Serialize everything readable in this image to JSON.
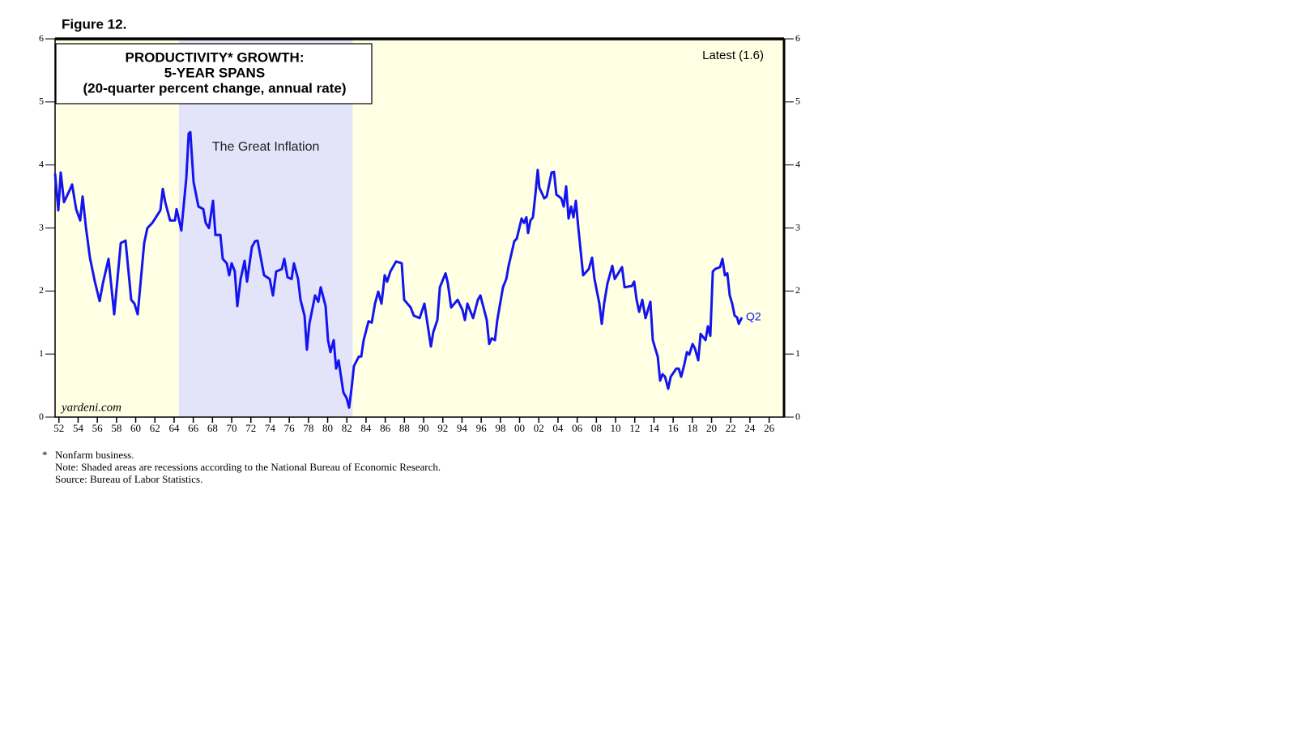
{
  "figure_label": "Figure 12.",
  "chart_data": {
    "type": "line",
    "title": [
      "PRODUCTIVITY* GROWTH:",
      "5-YEAR SPANS",
      "(20-quarter percent change, annual rate)"
    ],
    "annotations": {
      "latest": "Latest (1.6)",
      "last_point": "Q2",
      "shade_label": "The Great Inflation",
      "source_mark": "yardeni.com"
    },
    "shaded_span": [
      1964.5,
      1982.6
    ],
    "color": "#1414f0",
    "xlim": [
      1951.6,
      2027.55
    ],
    "ylim": [
      0,
      6
    ],
    "yticks": [
      0,
      1,
      2,
      3,
      4,
      5,
      6
    ],
    "xticks": [
      {
        "value": 1952,
        "label": "52"
      },
      {
        "value": 1954,
        "label": "54"
      },
      {
        "value": 1956,
        "label": "56"
      },
      {
        "value": 1958,
        "label": "58"
      },
      {
        "value": 1960,
        "label": "60"
      },
      {
        "value": 1962,
        "label": "62"
      },
      {
        "value": 1964,
        "label": "64"
      },
      {
        "value": 1966,
        "label": "66"
      },
      {
        "value": 1968,
        "label": "68"
      },
      {
        "value": 1970,
        "label": "70"
      },
      {
        "value": 1972,
        "label": "72"
      },
      {
        "value": 1974,
        "label": "74"
      },
      {
        "value": 1976,
        "label": "76"
      },
      {
        "value": 1978,
        "label": "78"
      },
      {
        "value": 1980,
        "label": "80"
      },
      {
        "value": 1982,
        "label": "82"
      },
      {
        "value": 1984,
        "label": "84"
      },
      {
        "value": 1986,
        "label": "86"
      },
      {
        "value": 1988,
        "label": "88"
      },
      {
        "value": 1990,
        "label": "90"
      },
      {
        "value": 1992,
        "label": "92"
      },
      {
        "value": 1994,
        "label": "94"
      },
      {
        "value": 1996,
        "label": "96"
      },
      {
        "value": 1998,
        "label": "98"
      },
      {
        "value": 2000,
        "label": "00"
      },
      {
        "value": 2002,
        "label": "02"
      },
      {
        "value": 2004,
        "label": "04"
      },
      {
        "value": 2006,
        "label": "06"
      },
      {
        "value": 2008,
        "label": "08"
      },
      {
        "value": 2010,
        "label": "10"
      },
      {
        "value": 2012,
        "label": "12"
      },
      {
        "value": 2014,
        "label": "14"
      },
      {
        "value": 2016,
        "label": "16"
      },
      {
        "value": 2018,
        "label": "18"
      },
      {
        "value": 2020,
        "label": "20"
      },
      {
        "value": 2022,
        "label": "22"
      },
      {
        "value": 2024,
        "label": "24"
      },
      {
        "value": 2026,
        "label": "26"
      }
    ],
    "x": [
      1951.6,
      1951.94,
      1952.19,
      1952.53,
      1953.12,
      1953.37,
      1953.79,
      1954.22,
      1954.47,
      1954.81,
      1955.23,
      1955.74,
      1956.24,
      1956.58,
      1957.17,
      1957.76,
      1958.44,
      1958.94,
      1959.53,
      1959.87,
      1960.21,
      1960.88,
      1961.22,
      1961.73,
      1962.57,
      1962.82,
      1963.08,
      1963.58,
      1964.09,
      1964.26,
      1964.76,
      1965.27,
      1965.52,
      1965.69,
      1966.03,
      1966.54,
      1967.04,
      1967.3,
      1967.63,
      1968.06,
      1968.31,
      1968.82,
      1969.07,
      1969.49,
      1969.74,
      1970.0,
      1970.33,
      1970.59,
      1970.93,
      1971.35,
      1971.6,
      1972.11,
      1972.44,
      1972.7,
      1973.37,
      1973.96,
      1974.3,
      1974.64,
      1975.23,
      1975.48,
      1975.82,
      1976.24,
      1976.49,
      1976.92,
      1977.17,
      1977.59,
      1977.84,
      1978.1,
      1978.69,
      1979.03,
      1979.28,
      1979.79,
      1980.04,
      1980.29,
      1980.63,
      1980.88,
      1981.14,
      1981.64,
      1981.98,
      1982.23,
      1982.49,
      1982.74,
      1983.25,
      1983.5,
      1983.75,
      1984.26,
      1984.6,
      1984.93,
      1985.27,
      1985.61,
      1985.95,
      1986.2,
      1986.54,
      1987.13,
      1987.72,
      1987.97,
      1988.65,
      1988.98,
      1989.58,
      1990.08,
      1990.34,
      1990.76,
      1991.01,
      1991.43,
      1991.69,
      1992.28,
      1992.53,
      1992.87,
      1993.54,
      1994.05,
      1994.3,
      1994.56,
      1995.15,
      1995.65,
      1995.91,
      1996.58,
      1996.83,
      1997.09,
      1997.43,
      1997.68,
      1998.27,
      1998.61,
      1998.86,
      1999.45,
      1999.7,
      2000.21,
      2000.46,
      2000.71,
      2000.88,
      2001.13,
      2001.39,
      2001.64,
      2001.89,
      2002.06,
      2002.57,
      2002.82,
      2003.33,
      2003.58,
      2003.83,
      2004.34,
      2004.6,
      2004.85,
      2005.1,
      2005.36,
      2005.61,
      2005.86,
      2006.11,
      2006.62,
      2007.21,
      2007.55,
      2007.8,
      2008.31,
      2008.56,
      2008.81,
      2009.15,
      2009.66,
      2009.91,
      2010.67,
      2010.93,
      2011.69,
      2011.94,
      2012.19,
      2012.45,
      2012.78,
      2013.12,
      2013.63,
      2013.88,
      2014.13,
      2014.39,
      2014.64,
      2014.89,
      2015.15,
      2015.48,
      2015.74,
      2016.33,
      2016.58,
      2016.83,
      2017.17,
      2017.43,
      2017.68,
      2018.02,
      2018.27,
      2018.61,
      2018.86,
      2019.37,
      2019.62,
      2019.87,
      2020.13,
      2020.38,
      2020.88,
      2021.14,
      2021.39,
      2021.64,
      2021.9,
      2022.15,
      2022.4,
      2022.66,
      2022.83,
      2023.16
    ],
    "values": [
      3.86,
      3.28,
      3.88,
      3.41,
      3.6,
      3.69,
      3.3,
      3.12,
      3.5,
      3.02,
      2.53,
      2.15,
      1.84,
      2.12,
      2.51,
      1.63,
      2.76,
      2.8,
      1.86,
      1.8,
      1.63,
      2.76,
      3.0,
      3.08,
      3.28,
      3.62,
      3.41,
      3.12,
      3.12,
      3.3,
      2.96,
      3.79,
      4.5,
      4.52,
      3.73,
      3.34,
      3.3,
      3.08,
      3.0,
      3.43,
      2.89,
      2.89,
      2.51,
      2.44,
      2.25,
      2.44,
      2.31,
      1.76,
      2.19,
      2.48,
      2.15,
      2.7,
      2.79,
      2.8,
      2.25,
      2.19,
      1.93,
      2.31,
      2.35,
      2.51,
      2.22,
      2.19,
      2.44,
      2.19,
      1.86,
      1.61,
      1.07,
      1.48,
      1.93,
      1.83,
      2.06,
      1.76,
      1.22,
      1.03,
      1.22,
      0.77,
      0.9,
      0.39,
      0.3,
      0.15,
      0.45,
      0.81,
      0.96,
      0.96,
      1.22,
      1.52,
      1.5,
      1.8,
      1.99,
      1.8,
      2.25,
      2.15,
      2.31,
      2.47,
      2.44,
      1.86,
      1.74,
      1.61,
      1.57,
      1.8,
      1.54,
      1.12,
      1.35,
      1.54,
      2.06,
      2.28,
      2.12,
      1.74,
      1.86,
      1.7,
      1.54,
      1.8,
      1.57,
      1.86,
      1.93,
      1.54,
      1.16,
      1.25,
      1.22,
      1.54,
      2.06,
      2.19,
      2.4,
      2.79,
      2.83,
      3.15,
      3.08,
      3.17,
      2.92,
      3.12,
      3.17,
      3.53,
      3.92,
      3.64,
      3.47,
      3.5,
      3.88,
      3.89,
      3.53,
      3.47,
      3.34,
      3.66,
      3.15,
      3.34,
      3.17,
      3.43,
      3.02,
      2.25,
      2.35,
      2.53,
      2.19,
      1.8,
      1.48,
      1.8,
      2.12,
      2.4,
      2.19,
      2.38,
      2.06,
      2.08,
      2.15,
      1.86,
      1.67,
      1.86,
      1.57,
      1.83,
      1.22,
      1.09,
      0.96,
      0.58,
      0.68,
      0.64,
      0.45,
      0.64,
      0.77,
      0.77,
      0.64,
      0.84,
      1.03,
      0.99,
      1.16,
      1.09,
      0.9,
      1.32,
      1.22,
      1.44,
      1.29,
      2.31,
      2.35,
      2.38,
      2.51,
      2.25,
      2.28,
      1.93,
      1.8,
      1.61,
      1.58,
      1.48,
      1.58
    ]
  },
  "footnotes": {
    "star": "*",
    "lines": [
      "Nonfarm business.",
      "Note: Shaded areas are recessions according to the National Bureau of Economic Research.",
      "Source: Bureau of Labor Statistics."
    ]
  }
}
